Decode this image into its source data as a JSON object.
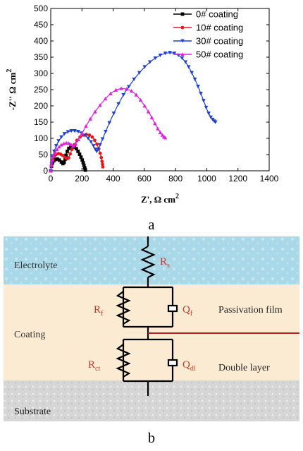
{
  "chart_data": {
    "type": "scatter",
    "xlabel": "Z', Ω  cm",
    "xlabel_sup": "2",
    "ylabel": "-Z'' Ω  cm",
    "ylabel_sup": "2",
    "xlim": [
      0,
      1400
    ],
    "ylim": [
      0,
      500
    ],
    "xticks": [
      0,
      200,
      400,
      600,
      800,
      1000,
      1200,
      1400
    ],
    "yticks": [
      0,
      50,
      100,
      150,
      200,
      250,
      300,
      350,
      400,
      450,
      500
    ],
    "legend_position": "top-right",
    "series": [
      {
        "name": "0# coating",
        "color": "#000000",
        "marker": "square",
        "x": [
          0,
          5,
          12,
          20,
          30,
          42,
          55,
          68,
          78,
          86,
          92,
          98,
          106,
          116,
          128,
          140,
          152,
          164,
          175,
          185,
          194,
          202,
          208,
          213,
          217,
          220,
          222
        ],
        "y": [
          0,
          14,
          24,
          31,
          35,
          36,
          33,
          27,
          22,
          26,
          36,
          48,
          60,
          69,
          74,
          75,
          73,
          68,
          60,
          51,
          42,
          33,
          25,
          17,
          10,
          5,
          2
        ]
      },
      {
        "name": "10# coating",
        "color": "#e31a1c",
        "marker": "circle",
        "x": [
          0,
          6,
          14,
          24,
          36,
          50,
          64,
          78,
          92,
          104,
          115,
          125,
          136,
          150,
          168,
          188,
          208,
          228,
          248,
          266,
          282,
          296,
          308,
          317,
          324,
          329,
          332,
          334
        ],
        "y": [
          0,
          20,
          35,
          45,
          51,
          53,
          51,
          47,
          41,
          37,
          40,
          52,
          66,
          80,
          94,
          104,
          110,
          112,
          110,
          104,
          94,
          82,
          68,
          54,
          41,
          29,
          20,
          12
        ]
      },
      {
        "name": "30# coating",
        "color": "#1f3fd1",
        "marker": "triangle-down",
        "x": [
          0,
          5,
          12,
          22,
          35,
          50,
          68,
          88,
          110,
          132,
          154,
          176,
          198,
          220,
          240,
          258,
          274,
          286,
          295,
          304,
          316,
          332,
          352,
          376,
          404,
          434,
          466,
          500,
          534,
          568,
          602,
          636,
          670,
          702,
          734,
          764,
          792,
          818,
          842,
          864,
          884,
          904,
          924,
          944,
          962,
          980,
          996,
          1012,
          1026,
          1038,
          1048,
          1056
        ],
        "y": [
          0,
          22,
          42,
          60,
          77,
          92,
          104,
          114,
          120,
          123,
          123,
          121,
          116,
          109,
          100,
          89,
          77,
          66,
          60,
          66,
          80,
          98,
          121,
          148,
          177,
          206,
          234,
          259,
          282,
          302,
          320,
          335,
          347,
          356,
          362,
          364,
          362,
          356,
          347,
          335,
          320,
          302,
          282,
          260,
          238,
          216,
          195,
          177,
          165,
          158,
          153,
          150
        ]
      },
      {
        "name": "50# coating",
        "color": "#e020e0",
        "marker": "triangle-up",
        "x": [
          0,
          4,
          10,
          18,
          28,
          40,
          54,
          68,
          84,
          100,
          116,
          130,
          144,
          160,
          178,
          200,
          226,
          254,
          284,
          316,
          350,
          384,
          418,
          452,
          486,
          518,
          548,
          576,
          602,
          626,
          648,
          668,
          686,
          702,
          716,
          726,
          734
        ],
        "y": [
          0,
          17,
          32,
          45,
          56,
          66,
          74,
          80,
          84,
          86,
          85,
          81,
          77,
          82,
          96,
          115,
          138,
          160,
          182,
          202,
          222,
          238,
          249,
          254,
          252,
          246,
          234,
          218,
          200,
          182,
          164,
          146,
          130,
          118,
          110,
          105,
          102
        ]
      }
    ]
  },
  "captions": {
    "a": "a",
    "b": "b"
  },
  "diagram": {
    "zones": {
      "electrolyte": "Electrolyte",
      "coating": "Coating",
      "substrate": "Substrate"
    },
    "components": {
      "rs": "R",
      "rs_sub": "s",
      "rf": "R",
      "rf_sub": "f",
      "qf": "Q",
      "qf_sub": "f",
      "rct": "R",
      "rct_sub": "ct",
      "qdl": "Q",
      "qdl_sub": "dl"
    },
    "annotations": {
      "passivation": "Passivation film",
      "double_layer": "Double layer"
    },
    "colors": {
      "electrolyte": "#a9d8e8",
      "coating": "#fbebd2",
      "substrate": "#d2d2d2",
      "accent_line": "#b22222",
      "component_label": "#c0392b"
    }
  }
}
